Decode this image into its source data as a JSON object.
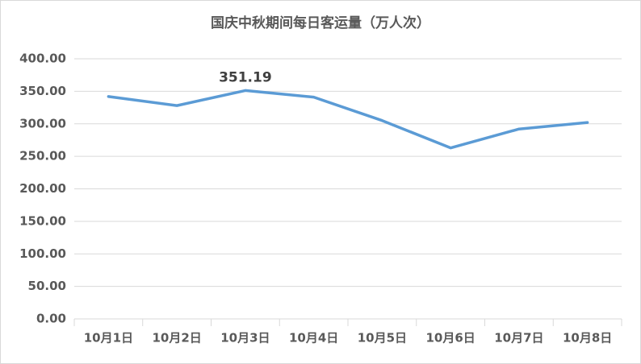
{
  "chart_data": {
    "type": "line",
    "title": "国庆中秋期间每日客运量（万人次）",
    "categories": [
      "10月1日",
      "10月2日",
      "10月3日",
      "10月4日",
      "10月5日",
      "10月6日",
      "10月7日",
      "10月8日"
    ],
    "values": [
      342,
      328,
      351.19,
      341,
      305,
      263,
      292,
      302
    ],
    "value_labels": [
      null,
      null,
      "351.19",
      null,
      null,
      null,
      null,
      null
    ],
    "color": "#5b9bd5",
    "ylim": [
      0,
      400
    ],
    "yticks": [
      {
        "value": 0,
        "label": "0.00"
      },
      {
        "value": 50,
        "label": "50.00"
      },
      {
        "value": 100,
        "label": "100.00"
      },
      {
        "value": 150,
        "label": "150.00"
      },
      {
        "value": 200,
        "label": "200.00"
      },
      {
        "value": 250,
        "label": "250.00"
      },
      {
        "value": 300,
        "label": "300.00"
      },
      {
        "value": 350,
        "label": "350.00"
      },
      {
        "value": 400,
        "label": "400.00"
      }
    ],
    "grid": true
  }
}
